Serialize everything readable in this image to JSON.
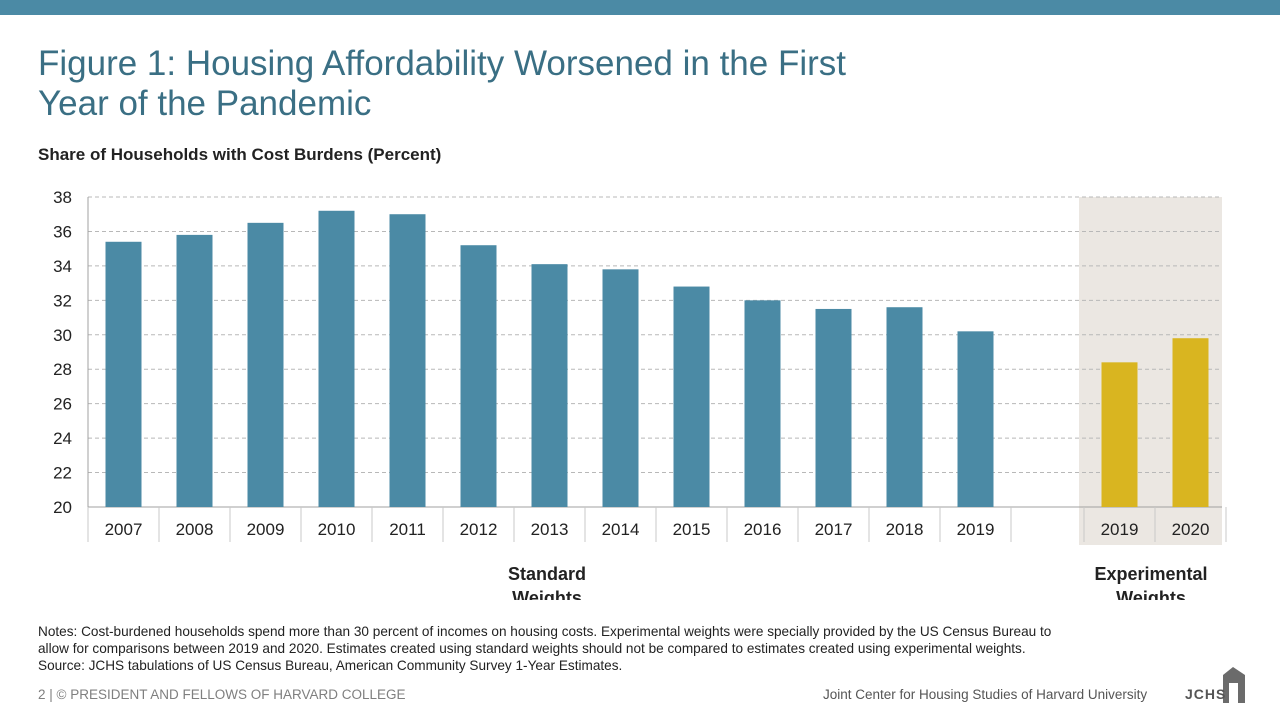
{
  "title_line1": "Figure 1: Housing Affordability Worsened in the First",
  "title_line2": "Year of the Pandemic",
  "subtitle": "Share of Households with Cost Burdens (Percent)",
  "colors": {
    "standard": "#4b8aa5",
    "experimental": "#d9b520",
    "band": "#ebe7e2",
    "title": "#3a6f84"
  },
  "chart_data": {
    "type": "bar",
    "ylim": [
      20,
      38
    ],
    "yticks": [
      20,
      22,
      24,
      26,
      28,
      30,
      32,
      34,
      36,
      38
    ],
    "grid": true,
    "series": [
      {
        "name": "Standard Weights",
        "categories": [
          "2007",
          "2008",
          "2009",
          "2010",
          "2011",
          "2012",
          "2013",
          "2014",
          "2015",
          "2016",
          "2017",
          "2018",
          "2019"
        ],
        "values": [
          35.4,
          35.8,
          36.5,
          37.2,
          37.0,
          35.2,
          34.1,
          33.8,
          32.8,
          32.0,
          31.5,
          31.6,
          30.2
        ]
      },
      {
        "name": "Experimental Weights",
        "categories": [
          "2019",
          "2020"
        ],
        "values": [
          28.4,
          29.8
        ]
      }
    ],
    "group_label_standard": [
      "Standard",
      "Weights"
    ],
    "group_label_experimental": [
      "Experimental",
      "Weights"
    ]
  },
  "notes": [
    "Notes: Cost-burdened households spend more than 30 percent of incomes on housing costs. Experimental weights were specially provided by the US Census Bureau to",
    "allow for comparisons between 2019 and 2020. Estimates created using standard weights should not be compared to estimates created using experimental weights.",
    "Source: JCHS tabulations of US Census Bureau, American Community Survey 1-Year Estimates."
  ],
  "footer_left": "2 | © PRESIDENT AND FELLOWS OF HARVARD COLLEGE",
  "footer_right": "Joint Center for Housing Studies of Harvard University",
  "logo_text": "JCHS"
}
